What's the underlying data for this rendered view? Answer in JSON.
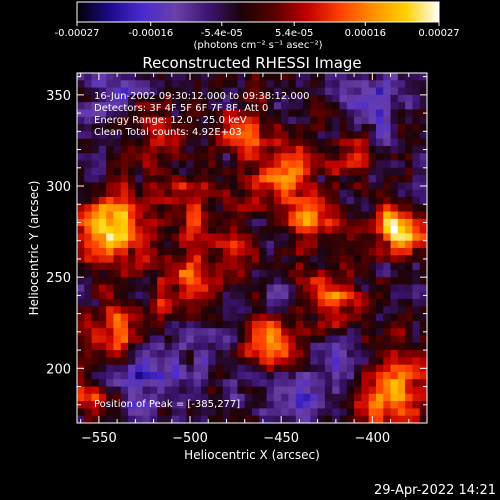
{
  "colorbar": {
    "tick_labels": [
      "-0.00027",
      "-0.00016",
      "-5.4e-05",
      "5.4e-05",
      "0.00016",
      "0.00027"
    ],
    "tick_values": [
      -0.00027,
      -0.00016,
      -5.4e-05,
      5.4e-05,
      0.00016,
      0.00027
    ],
    "range": [
      -0.00027,
      0.00027
    ],
    "unit_label": "(photons cm⁻² s⁻¹ asec⁻²)"
  },
  "chart_data": {
    "type": "heatmap",
    "title": "Reconstructed RHESSI Image",
    "xlabel": "Heliocentric X (arcsec)",
    "ylabel": "Heliocentric Y (arcsec)",
    "xlim": [
      -562,
      -370
    ],
    "ylim": [
      170,
      362
    ],
    "x_ticks": [
      -550,
      -500,
      -450,
      -400
    ],
    "y_ticks": [
      200,
      250,
      300,
      350
    ],
    "annotations": [
      "16-Jun-2002 09:30:12.000 to 09:38:12.000",
      "Detectors: 3F 4F 5F 6F 7F 8F, Att 0",
      "Energy Range: 12.0 - 25.0 keV",
      "Clean    Total counts: 4.92E+03"
    ],
    "peak_label": "Position of Peak = [-385,277]",
    "peak": [
      -385,
      277
    ],
    "colormap": [
      "#000000",
      "#1a0a8a",
      "#4a2ad0",
      "#6a40a8",
      "#3b1470",
      "#1a0308",
      "#5a0000",
      "#c00000",
      "#ff4000",
      "#ff9000",
      "#ffd000",
      "#ffffff"
    ],
    "bright_sources": [
      {
        "x": -385,
        "y": 277,
        "sigma": 10,
        "amp": 1.0
      },
      {
        "x": -543,
        "y": 277,
        "sigma": 14,
        "amp": 0.85
      },
      {
        "x": -448,
        "y": 305,
        "sigma": 12,
        "amp": 0.75
      },
      {
        "x": -455,
        "y": 213,
        "sigma": 9,
        "amp": 0.8
      },
      {
        "x": -390,
        "y": 185,
        "sigma": 14,
        "amp": 0.8
      },
      {
        "x": -500,
        "y": 245,
        "sigma": 12,
        "amp": 0.55
      },
      {
        "x": -500,
        "y": 290,
        "sigma": 12,
        "amp": 0.5
      },
      {
        "x": -420,
        "y": 240,
        "sigma": 11,
        "amp": 0.55
      },
      {
        "x": -540,
        "y": 220,
        "sigma": 11,
        "amp": 0.55
      },
      {
        "x": -470,
        "y": 330,
        "sigma": 10,
        "amp": 0.45
      },
      {
        "x": -520,
        "y": 330,
        "sigma": 10,
        "amp": 0.5
      },
      {
        "x": -555,
        "y": 185,
        "sigma": 8,
        "amp": 0.45
      },
      {
        "x": -430,
        "y": 280,
        "sigma": 10,
        "amp": 0.55
      },
      {
        "x": -475,
        "y": 265,
        "sigma": 9,
        "amp": 0.45
      },
      {
        "x": -410,
        "y": 320,
        "sigma": 9,
        "amp": 0.45
      }
    ],
    "dark_sources": [
      {
        "x": -525,
        "y": 195,
        "sigma": 11,
        "amp": 0.55
      },
      {
        "x": -438,
        "y": 185,
        "sigma": 9,
        "amp": 0.5
      },
      {
        "x": -400,
        "y": 345,
        "sigma": 10,
        "amp": 0.5
      },
      {
        "x": -545,
        "y": 350,
        "sigma": 10,
        "amp": 0.45
      },
      {
        "x": -415,
        "y": 200,
        "sigma": 8,
        "amp": 0.4
      },
      {
        "x": -490,
        "y": 215,
        "sigma": 9,
        "amp": 0.35
      }
    ]
  },
  "footer": {
    "timestamp": "29-Apr-2022 14:21"
  }
}
